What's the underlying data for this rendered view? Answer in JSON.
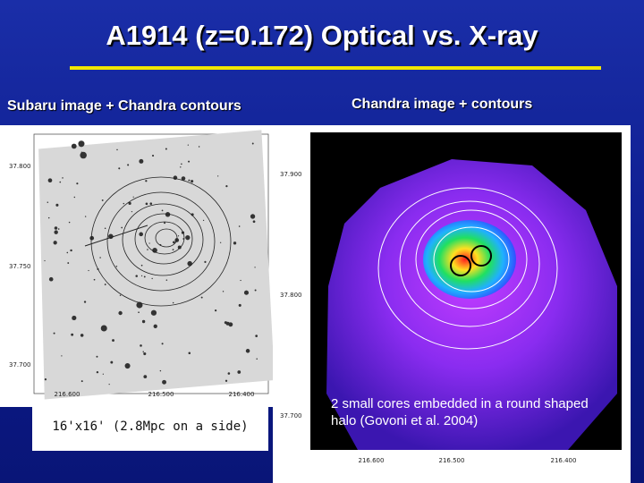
{
  "title": "A1914 (z=0.172) Optical vs. X-ray",
  "panels": [
    {
      "subtitle": "Subaru image + Chandra contours",
      "caption": "16'x16' (2.8Mpc on a side)",
      "y_ticks": [
        "37.800",
        "37.750",
        "37.700"
      ],
      "x_ticks": [
        "216.600",
        "216.500",
        "216.400"
      ]
    },
    {
      "subtitle": "Chandra image + contours",
      "caption": "2 small cores embedded in a round shaped halo (Govoni et al. 2004)",
      "y_ticks": [
        "37.900",
        "37.800",
        "37.700"
      ],
      "x_ticks": [
        "216.600",
        "216.500",
        "216.400"
      ]
    }
  ]
}
